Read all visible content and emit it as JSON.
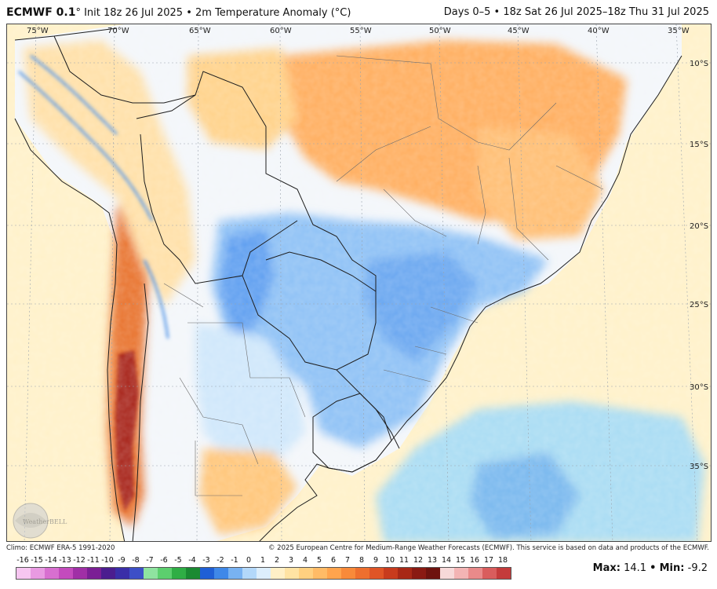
{
  "header": {
    "model": "ECMWF 0.1",
    "init_text": "° Init 18z 26 Jul 2025 • 2m Temperature Anomaly (°C)",
    "valid_text": "Days 0–5 • 18z Sat 26 Jul 2025–18z Thu 31 Jul 2025"
  },
  "map": {
    "lon_labels": [
      "75°W",
      "70°W",
      "65°W",
      "60°W",
      "55°W",
      "50°W",
      "45°W",
      "40°W",
      "35°W"
    ],
    "lat_labels": [
      "10°S",
      "15°S",
      "20°S",
      "25°S",
      "30°S",
      "35°S"
    ],
    "watermark": "WeatherBELL"
  },
  "footer": {
    "climo": "Climo: ECMWF ERA-5 1991-2020",
    "copyright": "© 2025 European Centre for Medium-Range Weather Forecasts (ECMWF). This service is based on data and products of the ECMWF."
  },
  "legend": {
    "ticks": [
      "-16",
      "-15",
      "-14",
      "-13",
      "-12",
      "-11",
      "-10",
      "-9",
      "-8",
      "-7",
      "-6",
      "-5",
      "-4",
      "-3",
      "-2",
      "-1",
      "0",
      "1",
      "2",
      "3",
      "4",
      "5",
      "6",
      "7",
      "8",
      "9",
      "10",
      "11",
      "12",
      "13",
      "14",
      "15",
      "16",
      "17",
      "18"
    ],
    "colors": [
      "#f7c6f1",
      "#e99ae2",
      "#d86fd0",
      "#c44bbd",
      "#a02fa6",
      "#7b1f95",
      "#4b1d8f",
      "#3a2ea8",
      "#3d4fc7",
      "#8fe3a0",
      "#5ccf6e",
      "#2fae45",
      "#1a8a32",
      "#1f5fd6",
      "#3f88e8",
      "#78b2f2",
      "#b3d8fa",
      "#ddeefc",
      "#fff0c7",
      "#ffe3a3",
      "#ffd080",
      "#ffbb66",
      "#ffa44d",
      "#f88a3a",
      "#ee6f2e",
      "#e05526",
      "#c83b1d",
      "#a82816",
      "#8a1a12",
      "#6e130e",
      "#f7d9d9",
      "#f3b4b4",
      "#e98a8a",
      "#d95d5d",
      "#c43b3b"
    ]
  },
  "stats": {
    "max_label": "Max:",
    "max_value": "14.1",
    "sep": "•",
    "min_label": "Min:",
    "min_value": "-9.2"
  }
}
